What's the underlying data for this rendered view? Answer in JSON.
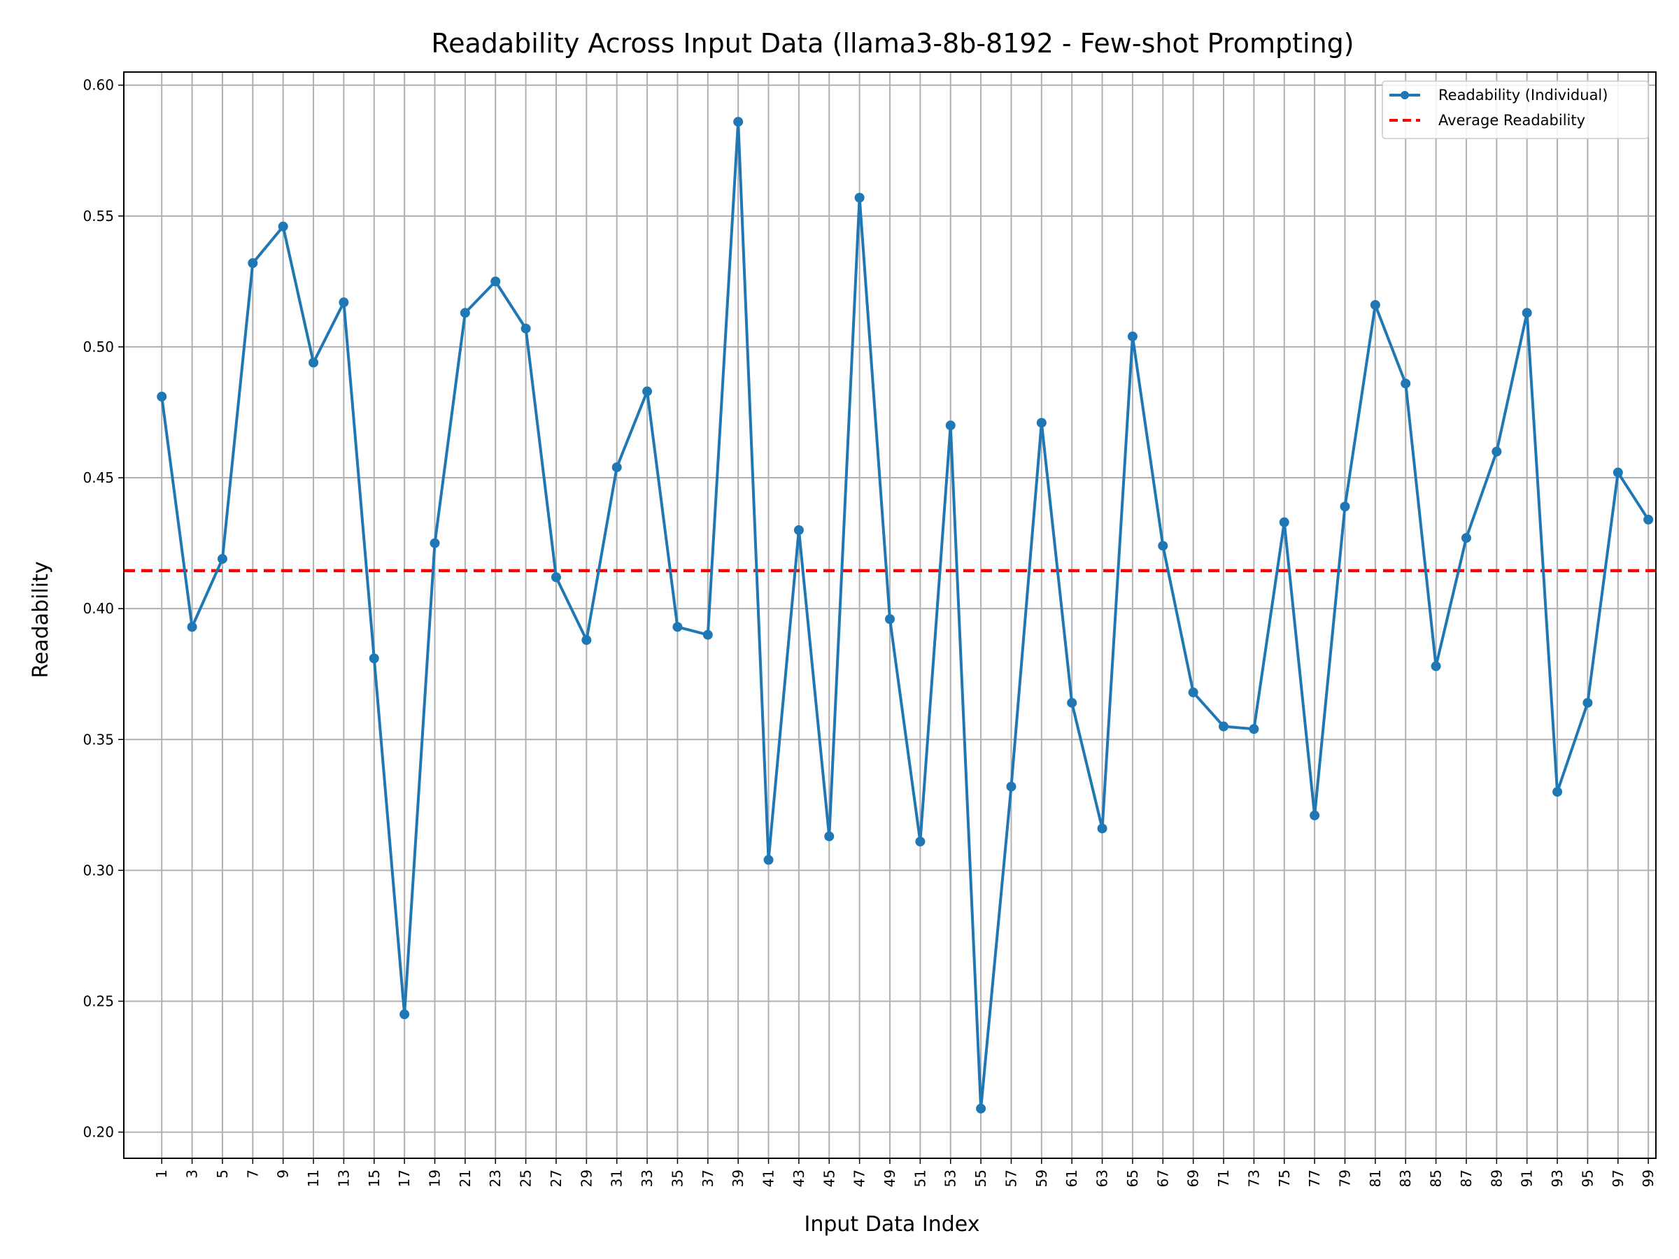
{
  "chart_data": {
    "type": "line",
    "title": "Readability Across Input Data (llama3-8b-8192 - Few-shot Prompting)",
    "xlabel": "Input Data Index",
    "ylabel": "Readability",
    "ylim": [
      0.19,
      0.605
    ],
    "xlim": [
      -1.5,
      99.5
    ],
    "grid": true,
    "legend_position": "top-right",
    "x_ticks": [
      1,
      3,
      5,
      7,
      9,
      11,
      13,
      15,
      17,
      19,
      21,
      23,
      25,
      27,
      29,
      31,
      33,
      35,
      37,
      39,
      41,
      43,
      45,
      47,
      49,
      51,
      53,
      55,
      57,
      59,
      61,
      63,
      65,
      67,
      69,
      71,
      73,
      75,
      77,
      79,
      81,
      83,
      85,
      87,
      89,
      91,
      93,
      95,
      97,
      99
    ],
    "y_ticks": [
      0.2,
      0.25,
      0.3,
      0.35,
      0.4,
      0.45,
      0.5,
      0.55,
      0.6
    ],
    "y_tick_labels": [
      "0.20",
      "0.25",
      "0.30",
      "0.35",
      "0.40",
      "0.45",
      "0.50",
      "0.55",
      "0.60"
    ],
    "series": [
      {
        "name": "Readability (Individual)",
        "color": "#1f77b4",
        "style": "line-with-markers",
        "x": [
          1,
          3,
          5,
          7,
          9,
          11,
          13,
          15,
          17,
          19,
          21,
          23,
          25,
          27,
          29,
          31,
          33,
          35,
          37,
          39,
          41,
          43,
          45,
          47,
          49,
          51,
          53,
          55,
          57,
          59,
          61,
          63,
          65,
          67,
          69,
          71,
          73,
          75,
          77,
          79,
          81,
          83,
          85,
          87,
          89,
          91,
          93,
          95,
          97,
          99
        ],
        "y": [
          0.481,
          0.393,
          0.419,
          0.532,
          0.546,
          0.494,
          0.517,
          0.381,
          0.245,
          0.425,
          0.513,
          0.525,
          0.507,
          0.412,
          0.388,
          0.454,
          0.483,
          0.393,
          0.39,
          0.586,
          0.304,
          0.43,
          0.313,
          0.557,
          0.396,
          0.311,
          0.47,
          0.209,
          0.332,
          0.471,
          0.364,
          0.316,
          0.504,
          0.424,
          0.368,
          0.355,
          0.354,
          0.433,
          0.321,
          0.439,
          0.516,
          0.486,
          0.378,
          0.427,
          0.46,
          0.513,
          0.33,
          0.364,
          0.452,
          0.434
        ]
      },
      {
        "name": "Average Readability",
        "color": "#ff0000",
        "style": "dashed",
        "y_constant": 0.4145
      }
    ]
  }
}
